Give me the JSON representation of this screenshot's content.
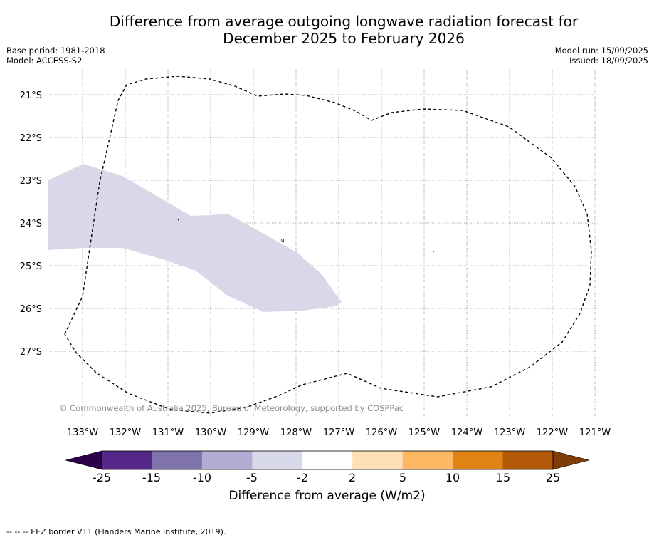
{
  "title": {
    "line1": "Difference from average outgoing longwave radiation forecast for",
    "line2": "December 2025 to February 2026"
  },
  "meta": {
    "base_period": "Base period: 1981-2018",
    "model": "Model: ACCESS-S2",
    "model_run": "Model run: 15/09/2025",
    "issued": "Issued: 18/09/2025"
  },
  "map": {
    "lat_labels": [
      "21°S",
      "22°S",
      "23°S",
      "24°S",
      "25°S",
      "26°S",
      "27°S"
    ],
    "lon_labels": [
      "133°W",
      "132°W",
      "131°W",
      "130°W",
      "129°W",
      "128°W",
      "127°W",
      "126°W",
      "125°W",
      "124°W",
      "123°W",
      "122°W",
      "121°W"
    ],
    "anomaly_fill_color": "#d8d8e9",
    "anomaly_band": "-5 to -2",
    "eez_line_style": "dashed"
  },
  "copyright": "© Commonwealth of Australia 2025, Bureau of Meteorology, supported by COSPPac",
  "colorbar": {
    "title": "Difference from average (W/m2)",
    "tick_labels": [
      "-25",
      "-15",
      "-10",
      "-5",
      "-2",
      "2",
      "5",
      "10",
      "15",
      "25"
    ],
    "under_color": "#2d004b",
    "over_color": "#7f3b08",
    "bins": [
      {
        "color": "#542788"
      },
      {
        "color": "#8073ac"
      },
      {
        "color": "#b2abd2"
      },
      {
        "color": "#d8daeb"
      },
      {
        "color": "#ffffff"
      },
      {
        "color": "#fee0b6"
      },
      {
        "color": "#fdb863"
      },
      {
        "color": "#e08214"
      },
      {
        "color": "#b35806"
      }
    ]
  },
  "footnote": "--  --  -- EEZ border V11 (Flanders Marine Institute, 2019)."
}
